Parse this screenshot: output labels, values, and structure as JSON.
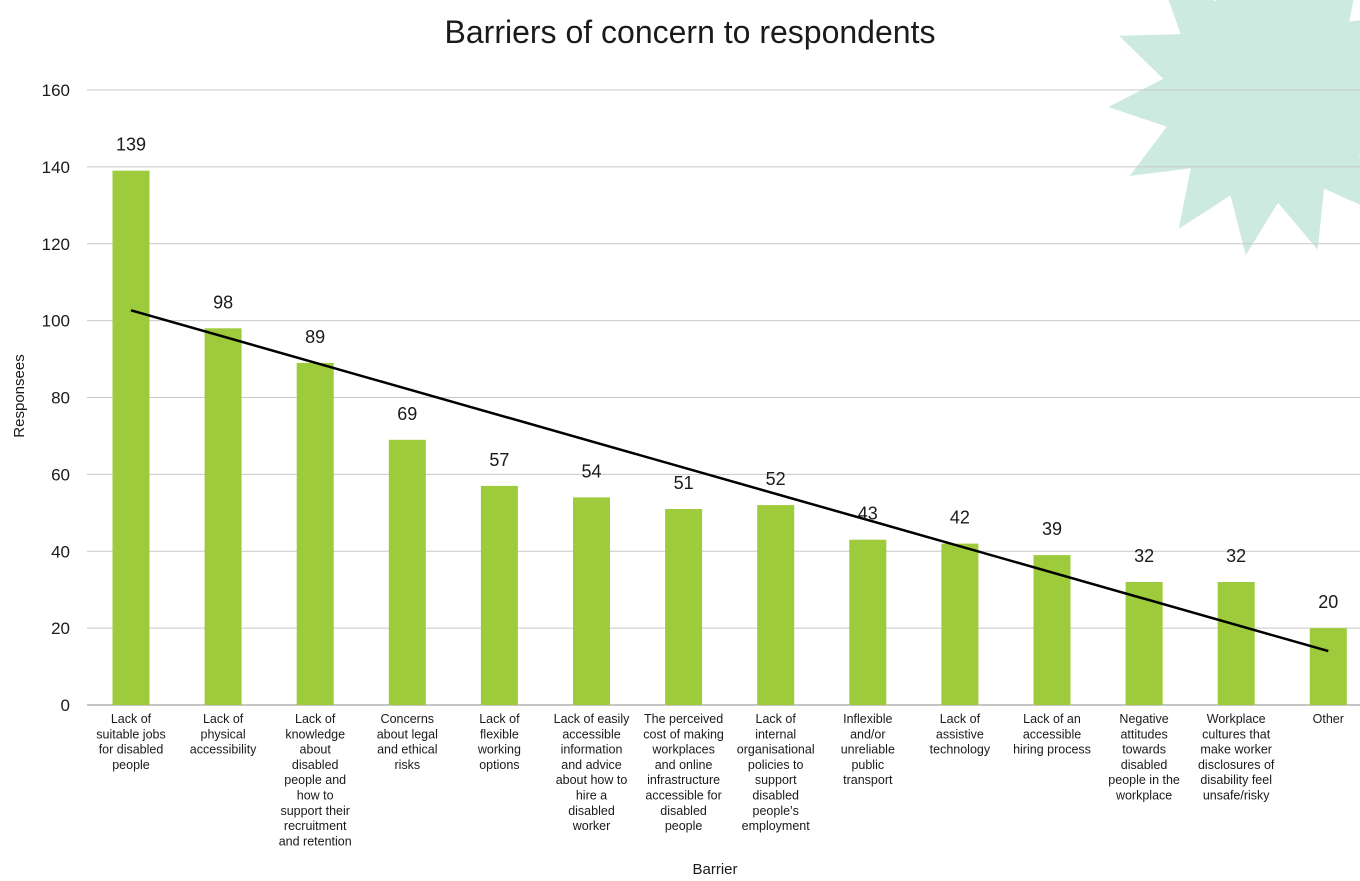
{
  "chart_data": {
    "type": "bar",
    "title": "Barriers of concern to respondents",
    "xlabel": "Barrier",
    "ylabel": "Responsees",
    "ylim": [
      0,
      160
    ],
    "yticks": [
      0,
      20,
      40,
      60,
      80,
      100,
      120,
      140,
      160
    ],
    "grid": true,
    "trendline": "linear",
    "categories": [
      "Lack of suitable jobs for disabled people",
      "Lack of physical accessibility",
      "Lack of knowledge about disabled people and how to support their recruitment and retention",
      "Concerns about legal and ethical risks",
      "Lack of flexible working options",
      "Lack of easily accessible information and advice about how to hire a disabled worker",
      "The perceived cost of making workplaces and online infrastructure accessible for disabled people",
      "Lack of internal organisational policies to support disabled people’s employment",
      "Inflexible and/or unreliable public transport",
      "Lack of assistive technology",
      "Lack of an accessible hiring process",
      "Negative attitudes towards disabled people in the workplace",
      "Workplace cultures that make worker disclosures of disability feel unsafe/risky",
      "Other"
    ],
    "category_lines": [
      [
        "Lack of",
        "suitable jobs",
        "for disabled",
        "people"
      ],
      [
        "Lack of",
        "physical",
        "accessibility"
      ],
      [
        "Lack of",
        "knowledge",
        "about",
        "disabled",
        "people and",
        "how to",
        "support their",
        "recruitment",
        "and retention"
      ],
      [
        "Concerns",
        "about legal",
        "and ethical",
        "risks"
      ],
      [
        "Lack of",
        "flexible",
        "working",
        "options"
      ],
      [
        "Lack of easily",
        "accessible",
        "information",
        "and advice",
        "about how to",
        "hire a",
        "disabled",
        "worker"
      ],
      [
        "The perceived",
        "cost of making",
        "workplaces",
        "and online",
        "infrastructure",
        "accessible for",
        "disabled",
        "people"
      ],
      [
        "Lack of",
        "internal",
        "organisational",
        "policies to",
        "support",
        "disabled",
        "people’s",
        "employment"
      ],
      [
        "Inflexible",
        "and/or",
        "unreliable",
        "public",
        "transport"
      ],
      [
        "Lack of",
        "assistive",
        "technology"
      ],
      [
        "Lack of an",
        "accessible",
        "hiring process"
      ],
      [
        "Negative",
        "attitudes",
        "towards",
        "disabled",
        "people in the",
        "workplace"
      ],
      [
        "Workplace",
        "cultures that",
        "make worker",
        "disclosures of",
        "disability feel",
        "unsafe/risky"
      ],
      [
        "Other"
      ]
    ],
    "values": [
      139,
      98,
      89,
      69,
      57,
      54,
      51,
      52,
      43,
      42,
      39,
      32,
      32,
      20
    ],
    "colors": {
      "bar": "#9dcb3b",
      "trendline": "#000000",
      "grid": "#c8c8c8",
      "decoration": "#cdeae0"
    }
  }
}
